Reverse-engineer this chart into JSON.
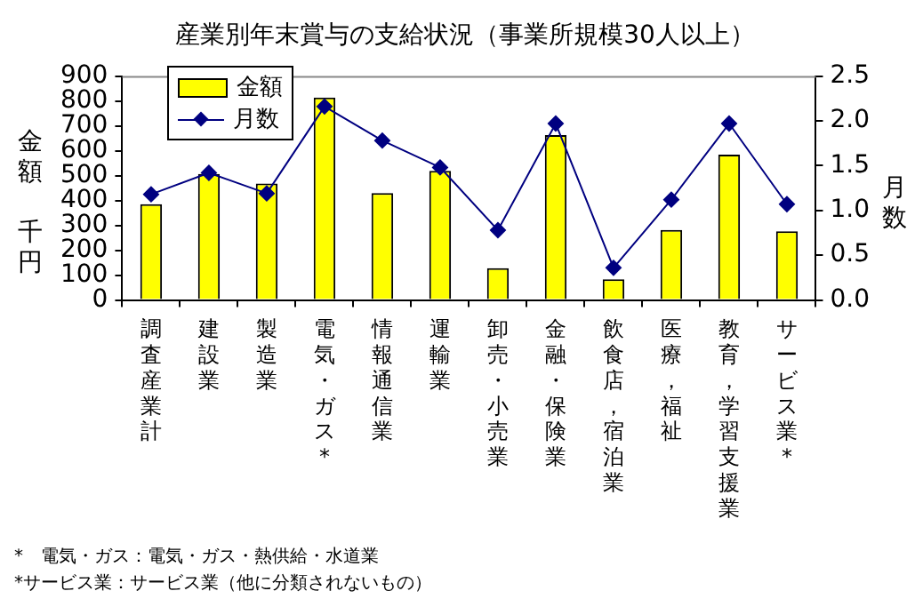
{
  "chart_data": {
    "type": "bar",
    "title": "産業別年末賞与の支給状況（事業所規模30人以上）",
    "categories": [
      "調査産業計",
      "建設業",
      "製造業",
      "電気・ガス*",
      "情報通信業",
      "運輸業",
      "卸売・小売業",
      "金融・保険業",
      "飲食店，宿泊業",
      "医療，福祉",
      "教育，学習支援業",
      "サービス業*"
    ],
    "series": [
      {
        "name": "金額",
        "color": "#ffff00",
        "values": [
          385,
          507,
          468,
          814,
          430,
          519,
          128,
          663,
          83,
          282,
          584,
          276
        ]
      },
      {
        "name": "月数",
        "type": "line",
        "axis": "y2",
        "color": "#000080",
        "values": [
          1.18,
          1.42,
          1.19,
          2.16,
          1.78,
          1.48,
          0.78,
          1.97,
          0.36,
          1.12,
          1.97,
          1.07
        ]
      }
    ],
    "ylabel": "金額千円",
    "y2label": "月数",
    "ylim": [
      0,
      900
    ],
    "yticks": [
      0,
      100,
      200,
      300,
      400,
      500,
      600,
      700,
      800,
      900
    ],
    "y2lim": [
      0,
      2.5
    ],
    "y2ticks": [
      {
        "value": 0,
        "label": "0.0"
      },
      {
        "value": 0.5,
        "label": "0.5"
      },
      {
        "value": 1,
        "label": "1.0"
      },
      {
        "value": 1.5,
        "label": "1.5"
      },
      {
        "value": 2,
        "label": "2.0"
      },
      {
        "value": 2.5,
        "label": "2.5"
      }
    ],
    "marker": "diamond",
    "line_style": "solid",
    "legend": "top left",
    "grid": false,
    "annotations": [
      "*　電気・ガス：電気・ガス・熱供給・水道業",
      "*サービス業：サービス業（他に分類されないもの）"
    ]
  }
}
